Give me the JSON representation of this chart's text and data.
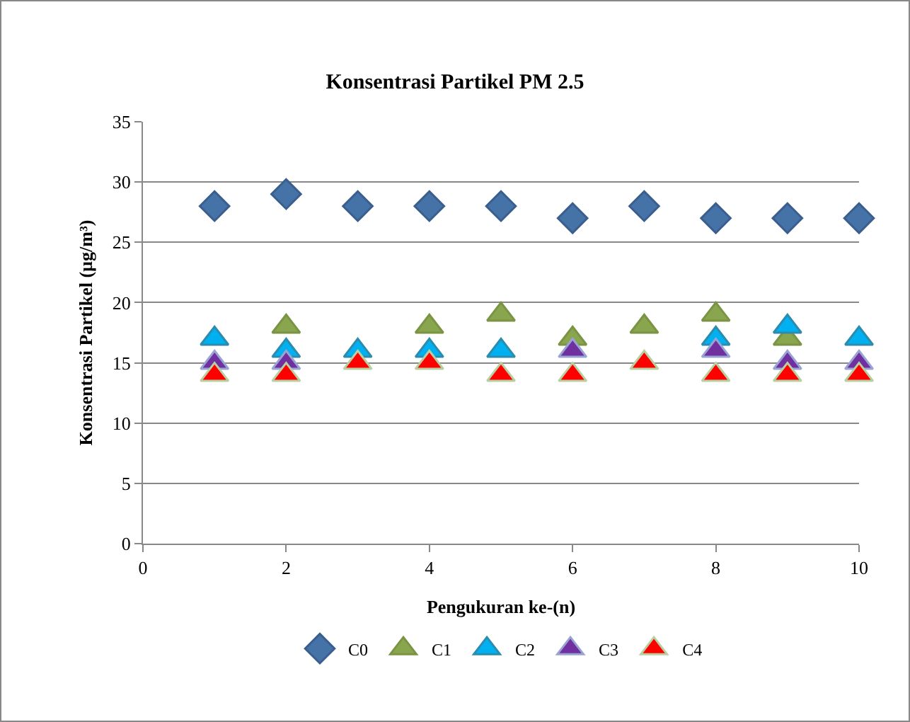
{
  "chart_data": {
    "type": "scatter",
    "title": "Konsentrasi Partikel PM 2.5",
    "xlabel": "Pengukuran ke-(n)",
    "ylabel": "Konsentrasi Partikel (µg/m³)",
    "x": [
      1,
      2,
      3,
      4,
      5,
      6,
      7,
      8,
      9,
      10
    ],
    "series": [
      {
        "name": "C0",
        "color": "#4572a7",
        "marker": "diamond",
        "values": [
          28,
          29,
          28,
          28,
          28,
          27,
          28,
          27,
          27,
          27
        ]
      },
      {
        "name": "C1",
        "color": "#89a54e",
        "marker": "triangle",
        "values": [
          null,
          18,
          null,
          18,
          19,
          17,
          18,
          19,
          17,
          null
        ]
      },
      {
        "name": "C2",
        "color": "#00b0f0",
        "marker": "triangle",
        "values": [
          17,
          16,
          16,
          16,
          16,
          null,
          null,
          17,
          18,
          17
        ]
      },
      {
        "name": "C3",
        "color": "#7030a0",
        "marker": "triangle",
        "values": [
          15,
          15,
          null,
          null,
          null,
          16,
          null,
          16,
          15,
          15
        ]
      },
      {
        "name": "C4",
        "color": "#ff0000",
        "marker": "triangle",
        "values": [
          14,
          14,
          15,
          15,
          14,
          14,
          15,
          14,
          14,
          14
        ]
      }
    ],
    "xlim": [
      0,
      10
    ],
    "xticks": [
      0,
      2,
      4,
      6,
      8,
      10
    ],
    "ylim": [
      0,
      35
    ],
    "yticks": [
      0,
      5,
      10,
      15,
      20,
      25,
      30,
      35
    ],
    "grid": "y",
    "legend": "bottom"
  }
}
